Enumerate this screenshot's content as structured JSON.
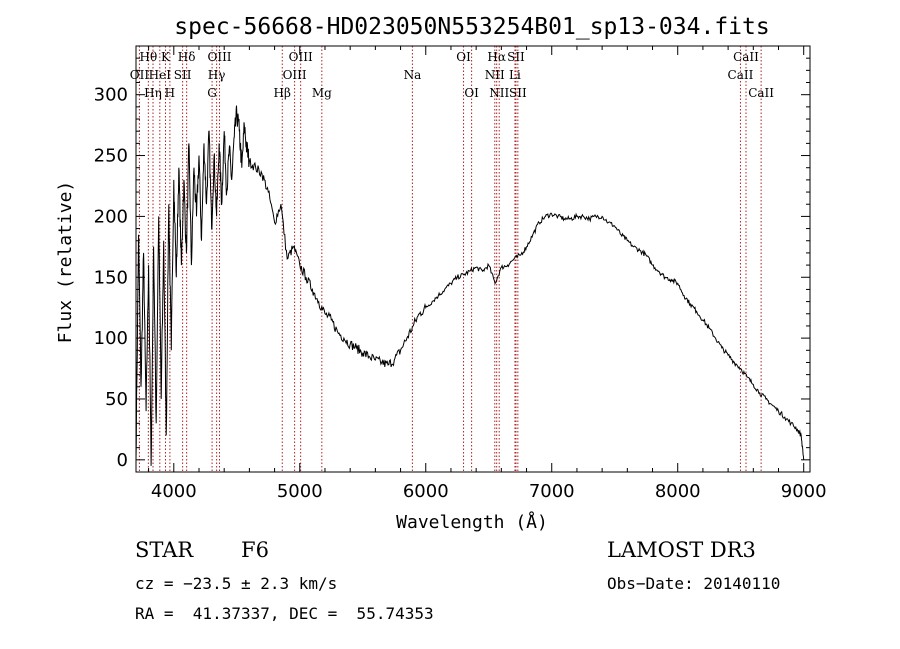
{
  "chart_data": {
    "type": "line",
    "title": "spec-56668-HD023050N553254B01_sp13-034.fits",
    "xlabel": "Wavelength (Å)",
    "ylabel": "Flux (relative)",
    "xlim": [
      3700,
      9050
    ],
    "ylim": [
      -10,
      340
    ],
    "xticks": [
      4000,
      5000,
      6000,
      7000,
      8000,
      9000
    ],
    "yticks": [
      0,
      50,
      100,
      150,
      200,
      250,
      300
    ],
    "series": [
      {
        "name": "flux",
        "x": [
          3700,
          3720,
          3740,
          3760,
          3780,
          3800,
          3820,
          3840,
          3860,
          3880,
          3900,
          3920,
          3940,
          3960,
          3980,
          4000,
          4020,
          4040,
          4060,
          4080,
          4100,
          4120,
          4140,
          4160,
          4180,
          4200,
          4220,
          4240,
          4260,
          4280,
          4300,
          4320,
          4340,
          4360,
          4380,
          4400,
          4420,
          4440,
          4460,
          4480,
          4500,
          4520,
          4540,
          4560,
          4580,
          4600,
          4650,
          4700,
          4750,
          4800,
          4850,
          4900,
          4950,
          5000,
          5050,
          5100,
          5150,
          5200,
          5250,
          5300,
          5350,
          5400,
          5450,
          5500,
          5550,
          5600,
          5650,
          5700,
          5750,
          5800,
          5850,
          5900,
          5950,
          6000,
          6050,
          6100,
          6150,
          6200,
          6250,
          6300,
          6350,
          6400,
          6450,
          6500,
          6550,
          6600,
          6650,
          6700,
          6750,
          6800,
          6850,
          6900,
          6950,
          7000,
          7050,
          7100,
          7150,
          7200,
          7250,
          7300,
          7350,
          7400,
          7450,
          7500,
          7550,
          7600,
          7650,
          7700,
          7750,
          7800,
          7850,
          7900,
          7950,
          8000,
          8050,
          8100,
          8150,
          8200,
          8250,
          8300,
          8350,
          8400,
          8450,
          8500,
          8550,
          8600,
          8650,
          8700,
          8750,
          8800,
          8850,
          8900,
          8950,
          8980,
          9000
        ],
        "values": [
          0,
          185,
          60,
          170,
          40,
          160,
          -5,
          175,
          30,
          200,
          50,
          180,
          20,
          210,
          90,
          230,
          150,
          240,
          160,
          230,
          170,
          260,
          160,
          240,
          200,
          250,
          180,
          260,
          210,
          270,
          190,
          250,
          200,
          260,
          210,
          270,
          220,
          255,
          230,
          265,
          285,
          270,
          240,
          275,
          255,
          245,
          240,
          235,
          220,
          195,
          210,
          165,
          175,
          160,
          150,
          140,
          130,
          120,
          115,
          105,
          100,
          95,
          92,
          88,
          85,
          82,
          80,
          78,
          82,
          90,
          100,
          110,
          120,
          125,
          130,
          135,
          140,
          145,
          150,
          152,
          155,
          158,
          155,
          160,
          145,
          158,
          160,
          165,
          168,
          175,
          185,
          195,
          200,
          202,
          200,
          198,
          198,
          200,
          200,
          198,
          200,
          200,
          195,
          192,
          185,
          180,
          175,
          172,
          168,
          160,
          155,
          150,
          148,
          145,
          135,
          128,
          122,
          115,
          108,
          100,
          92,
          86,
          80,
          75,
          68,
          62,
          55,
          50,
          45,
          40,
          35,
          30,
          25,
          20,
          0
        ]
      }
    ],
    "lines": [
      {
        "label": "OII",
        "wl": 3727,
        "row": 1
      },
      {
        "label": "Hθ",
        "wl": 3798,
        "row": 0
      },
      {
        "label": "Hη",
        "wl": 3835,
        "row": 2
      },
      {
        "label": "HeI",
        "wl": 3889,
        "row": 1
      },
      {
        "label": "K",
        "wl": 3934,
        "row": 0
      },
      {
        "label": "H",
        "wl": 3969,
        "row": 2
      },
      {
        "label": "SII",
        "wl": 4070,
        "row": 1
      },
      {
        "label": "Hδ",
        "wl": 4102,
        "row": 0
      },
      {
        "label": "G",
        "wl": 4304,
        "row": 2
      },
      {
        "label": "Hγ",
        "wl": 4340,
        "row": 1
      },
      {
        "label": "OIII",
        "wl": 4363,
        "row": 0
      },
      {
        "label": "Hβ",
        "wl": 4861,
        "row": 2
      },
      {
        "label": "OIII",
        "wl": 4959,
        "row": 1
      },
      {
        "label": "OIII",
        "wl": 5007,
        "row": 0
      },
      {
        "label": "Mg",
        "wl": 5175,
        "row": 2
      },
      {
        "label": "Na",
        "wl": 5894,
        "row": 1
      },
      {
        "label": "OI",
        "wl": 6300,
        "row": 0
      },
      {
        "label": "OI",
        "wl": 6364,
        "row": 2
      },
      {
        "label": "NII",
        "wl": 6548,
        "row": 1
      },
      {
        "label": "Hα",
        "wl": 6563,
        "row": 0
      },
      {
        "label": "NII",
        "wl": 6583,
        "row": 2
      },
      {
        "label": "Li",
        "wl": 6708,
        "row": 1
      },
      {
        "label": "SII",
        "wl": 6716,
        "row": 0
      },
      {
        "label": "SII",
        "wl": 6731,
        "row": 2
      },
      {
        "label": "CaII",
        "wl": 8498,
        "row": 1
      },
      {
        "label": "CaII",
        "wl": 8542,
        "row": 0
      },
      {
        "label": "CaII",
        "wl": 8662,
        "row": 2
      }
    ]
  },
  "info": {
    "object_class": "STAR",
    "subclass": "F6",
    "survey": "LAMOST DR3",
    "cz": "cz = −23.5 ± 2.3 km/s",
    "obs_date": "Obs−Date: 20140110",
    "coords": "RA =  41.37337, DEC =  55.74353"
  }
}
